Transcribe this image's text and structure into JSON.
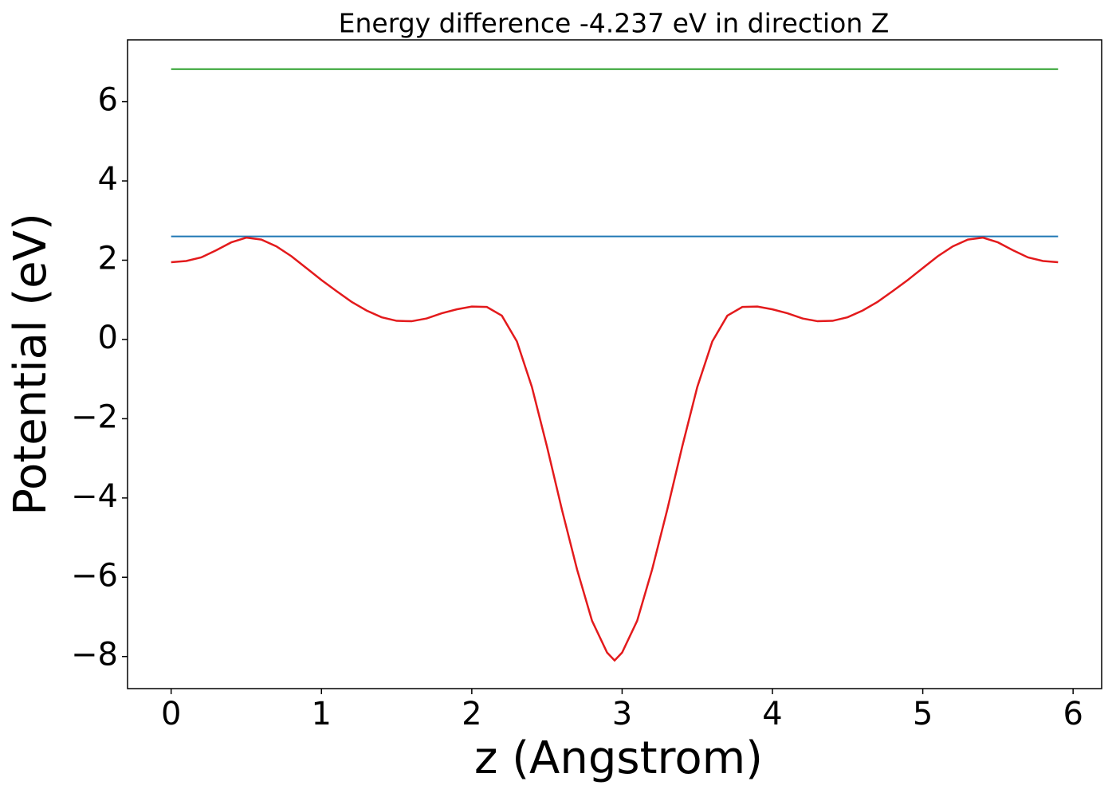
{
  "chart_data": {
    "type": "line",
    "title": "Energy difference -4.237 eV in direction Z",
    "xlabel": "z (Angstrom)",
    "ylabel": "Potential (eV)",
    "series": [
      {
        "color": "#2ca02c",
        "x": [
          0,
          5.9
        ],
        "values": [
          6.82,
          6.82
        ]
      },
      {
        "color": "#1f77b4",
        "x": [
          0,
          5.9
        ],
        "values": [
          2.6,
          2.6
        ]
      },
      {
        "color": "#e31a1c",
        "x": [
          0,
          0.1,
          0.2,
          0.3,
          0.4,
          0.5,
          0.6,
          0.7,
          0.8,
          0.9,
          1.0,
          1.1,
          1.2,
          1.3,
          1.4,
          1.5,
          1.6,
          1.7,
          1.8,
          1.9,
          2.0,
          2.1,
          2.2,
          2.3,
          2.4,
          2.5,
          2.6,
          2.7,
          2.8,
          2.9,
          2.95,
          3.0,
          3.1,
          3.2,
          3.3,
          3.4,
          3.5,
          3.6,
          3.7,
          3.8,
          3.9,
          4.0,
          4.1,
          4.2,
          4.3,
          4.4,
          4.5,
          4.6,
          4.7,
          4.8,
          4.9,
          5.0,
          5.1,
          5.2,
          5.3,
          5.4,
          5.5,
          5.6,
          5.7,
          5.8,
          5.9
        ],
        "values": [
          1.95,
          1.98,
          2.07,
          2.25,
          2.45,
          2.57,
          2.52,
          2.35,
          2.1,
          1.8,
          1.5,
          1.22,
          0.95,
          0.73,
          0.56,
          0.47,
          0.46,
          0.53,
          0.66,
          0.76,
          0.83,
          0.82,
          0.6,
          -0.05,
          -1.2,
          -2.7,
          -4.3,
          -5.8,
          -7.1,
          -7.9,
          -8.1,
          -7.9,
          -7.1,
          -5.8,
          -4.3,
          -2.7,
          -1.2,
          -0.05,
          0.6,
          0.82,
          0.83,
          0.76,
          0.66,
          0.53,
          0.46,
          0.47,
          0.56,
          0.73,
          0.95,
          1.22,
          1.5,
          1.8,
          2.1,
          2.35,
          2.52,
          2.57,
          2.45,
          2.25,
          2.07,
          1.98,
          1.95
        ]
      }
    ],
    "xlim": [
      -0.29,
      6.19
    ],
    "ylim": [
      -8.81,
      7.56
    ],
    "xticks": [
      0,
      1,
      2,
      3,
      4,
      5,
      6
    ],
    "yticks": [
      {
        "value": -8,
        "label": "−8"
      },
      {
        "value": -6,
        "label": "−6"
      },
      {
        "value": -4,
        "label": "−4"
      },
      {
        "value": -2,
        "label": "−2"
      },
      0,
      2,
      4,
      6
    ]
  }
}
